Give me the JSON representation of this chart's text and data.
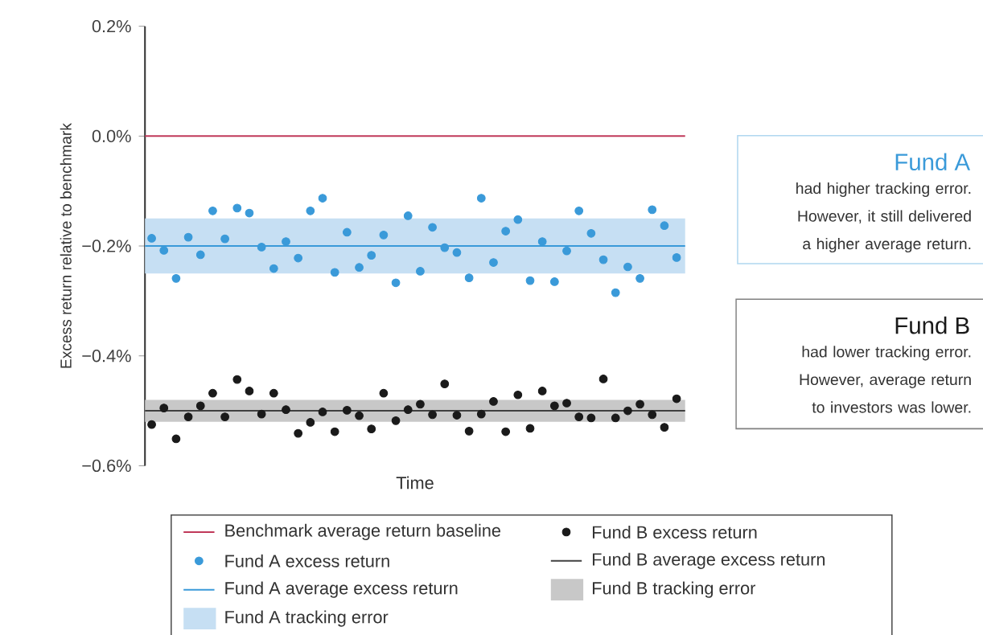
{
  "chart_data": {
    "type": "scatter",
    "xlabel": "Time",
    "ylabel": "Excess return relative to benchmark",
    "categories": [
      null,
      null,
      null,
      null,
      null,
      null,
      null,
      null,
      null,
      null,
      null,
      null,
      null,
      null,
      null,
      null,
      null,
      null,
      null,
      null,
      null,
      null,
      null,
      null,
      null,
      null,
      null,
      null,
      null,
      null,
      null,
      null,
      null,
      null,
      null,
      null,
      null,
      null,
      null,
      null,
      null,
      null,
      null,
      null
    ],
    "series": [
      {
        "name": "Fund A excess return",
        "color": "#3a9ad9",
        "values": [
          -0.186,
          -0.208,
          -0.259,
          -0.184,
          -0.216,
          -0.136,
          -0.187,
          -0.131,
          -0.14,
          -0.202,
          -0.241,
          -0.192,
          -0.222,
          -0.136,
          -0.113,
          -0.248,
          -0.175,
          -0.239,
          -0.217,
          -0.18,
          -0.267,
          -0.145,
          -0.246,
          -0.166,
          -0.203,
          -0.212,
          -0.258,
          -0.113,
          -0.23,
          -0.173,
          -0.152,
          -0.263,
          -0.192,
          -0.265,
          -0.209,
          -0.136,
          -0.177,
          -0.225,
          -0.285,
          -0.238,
          -0.259,
          -0.134,
          -0.163,
          -0.221
        ]
      },
      {
        "name": "Fund B excess return",
        "color": "#1a1a1a",
        "values": [
          -0.525,
          -0.495,
          -0.551,
          -0.511,
          -0.491,
          -0.468,
          -0.511,
          -0.443,
          -0.464,
          -0.506,
          -0.468,
          -0.498,
          -0.541,
          -0.521,
          -0.502,
          -0.538,
          -0.499,
          -0.509,
          -0.533,
          -0.468,
          -0.518,
          -0.498,
          -0.488,
          -0.507,
          -0.451,
          -0.508,
          -0.537,
          -0.506,
          -0.483,
          -0.538,
          -0.471,
          -0.532,
          -0.464,
          -0.491,
          -0.486,
          -0.511,
          -0.513,
          -0.442,
          -0.513,
          -0.5,
          -0.488,
          -0.507,
          -0.53,
          -0.478
        ]
      }
    ],
    "ylim": [
      -0.6,
      0.2
    ],
    "yticks": [
      {
        "value": -0.6,
        "label": "−0.6%"
      },
      {
        "value": -0.4,
        "label": "−0.4%"
      },
      {
        "value": -0.2,
        "label": "−0.2%"
      },
      {
        "value": 0,
        "label": "0.0%"
      },
      {
        "value": 0.2,
        "label": "0.2%"
      }
    ],
    "ref_lines": [
      {
        "axis": "y",
        "value": 0,
        "label": "Benchmark average return baseline",
        "color": "#c0395a"
      },
      {
        "axis": "y",
        "value": -0.2,
        "label": "Fund A average excess return",
        "color": "#3a9ad9"
      },
      {
        "axis": "y",
        "value": -0.5,
        "label": "Fund B average excess return",
        "color": "#404040"
      }
    ],
    "bands": [
      {
        "axis": "y",
        "from": -0.25,
        "to": -0.15,
        "label": "Fund A tracking error",
        "color": "#c6dff3"
      },
      {
        "axis": "y",
        "from": -0.52,
        "to": -0.48,
        "label": "Fund B tracking error",
        "color": "#c8c8c8"
      }
    ],
    "annotations": [
      "Fund A",
      "had higher tracking error. However, it still delivered a higher average return.",
      "Fund B",
      "had lower tracking error. However, average return to investors was lower."
    ],
    "marker": "circle",
    "grid": false,
    "legend": "bottom"
  }
}
